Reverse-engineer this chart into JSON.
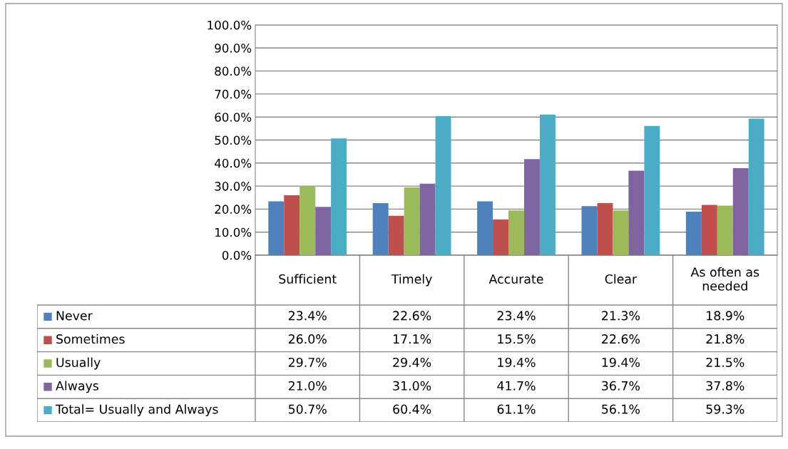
{
  "chart_data": {
    "type": "bar",
    "categories": [
      "Sufficient",
      "Timely",
      "Accurate",
      "Clear",
      "As often as\nneeded"
    ],
    "series": [
      {
        "name": "Never",
        "color": "#4f81bd",
        "values": [
          23.4,
          22.6,
          23.4,
          21.3,
          18.9
        ],
        "value_labels": [
          "23.4%",
          "22.6%",
          "23.4%",
          "21.3%",
          "18.9%"
        ]
      },
      {
        "name": "Sometimes",
        "color": "#c0504d",
        "values": [
          26.0,
          17.1,
          15.5,
          22.6,
          21.8
        ],
        "value_labels": [
          "26.0%",
          "17.1%",
          "15.5%",
          "22.6%",
          "21.8%"
        ]
      },
      {
        "name": "Usually",
        "color": "#9bbb59",
        "values": [
          29.7,
          29.4,
          19.4,
          19.4,
          21.5
        ],
        "value_labels": [
          "29.7%",
          "29.4%",
          "19.4%",
          "19.4%",
          "21.5%"
        ]
      },
      {
        "name": "Always",
        "color": "#8064a2",
        "values": [
          21.0,
          31.0,
          41.7,
          36.7,
          37.8
        ],
        "value_labels": [
          "21.0%",
          "31.0%",
          "41.7%",
          "36.7%",
          "37.8%"
        ]
      },
      {
        "name": "Total= Usually and Always",
        "color": "#4bacc6",
        "values": [
          50.7,
          60.4,
          61.1,
          56.1,
          59.3
        ],
        "value_labels": [
          "50.7%",
          "60.4%",
          "61.1%",
          "56.1%",
          "59.3%"
        ]
      }
    ],
    "ylim": [
      0,
      100
    ],
    "yticks": [
      {
        "value": 0,
        "label": "0.0%"
      },
      {
        "value": 10,
        "label": "10.0%"
      },
      {
        "value": 20,
        "label": "20.0%"
      },
      {
        "value": 30,
        "label": "30.0%"
      },
      {
        "value": 40,
        "label": "40.0%"
      },
      {
        "value": 50,
        "label": "50.0%"
      },
      {
        "value": 60,
        "label": "60.0%"
      },
      {
        "value": 70,
        "label": "70.0%"
      },
      {
        "value": 80,
        "label": "80.0%"
      },
      {
        "value": 90,
        "label": "90.0%"
      },
      {
        "value": 100,
        "label": "100.0%"
      }
    ],
    "grid": "y",
    "legend": "bottom"
  }
}
